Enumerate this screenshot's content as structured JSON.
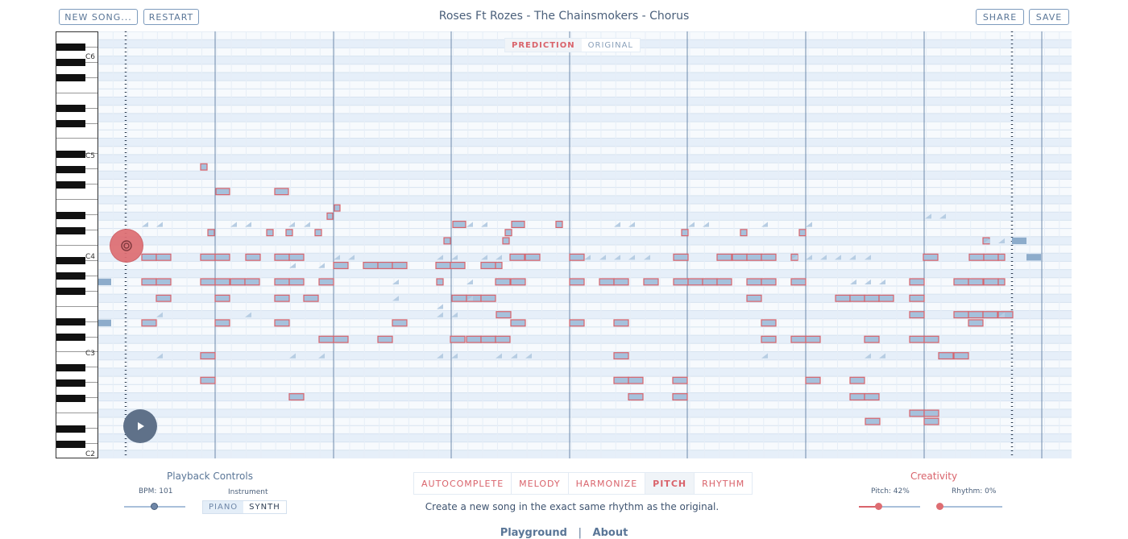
{
  "header": {
    "new_song_label": "NEW SONG...",
    "restart_label": "RESTART",
    "title": "Roses Ft Rozes - The Chainsmokers - Chorus",
    "share_label": "SHARE",
    "save_label": "SAVE"
  },
  "view_toggle": {
    "prediction_label": "PREDICTION",
    "original_label": "ORIGINAL",
    "active": "PREDICTION"
  },
  "keyboard": {
    "octave_labels": [
      "C6",
      "C5",
      "C4",
      "C3",
      "C2"
    ]
  },
  "colors": {
    "note_red": "#d9636b",
    "note_fill": "#a6c1dc",
    "bar_line": "#6d89ab",
    "row_tint": "#eaf2fb",
    "accent": "#d9636b"
  },
  "playback": {
    "section_title": "Playback Controls",
    "bpm_label": "BPM: 101",
    "bpm": 101,
    "instrument_label": "Instrument",
    "instruments": [
      "PIANO",
      "SYNTH"
    ],
    "selected_instrument": "PIANO"
  },
  "modes": {
    "items": [
      "AUTOCOMPLETE",
      "MELODY",
      "HARMONIZE",
      "PITCH",
      "RHYTHM"
    ],
    "active": "PITCH",
    "description": "Create a new song in the exact same rhythm as the original."
  },
  "creativity": {
    "section_title": "Creativity",
    "pitch_label": "Pitch: 42%",
    "pitch": 0.42,
    "rhythm_label": "Rhythm: 0%",
    "rhythm": 0.0
  },
  "footer": {
    "playground_label": "Playground",
    "separator": "|",
    "about_label": "About"
  },
  "icons": {
    "record": "record-icon",
    "play": "play-icon"
  }
}
